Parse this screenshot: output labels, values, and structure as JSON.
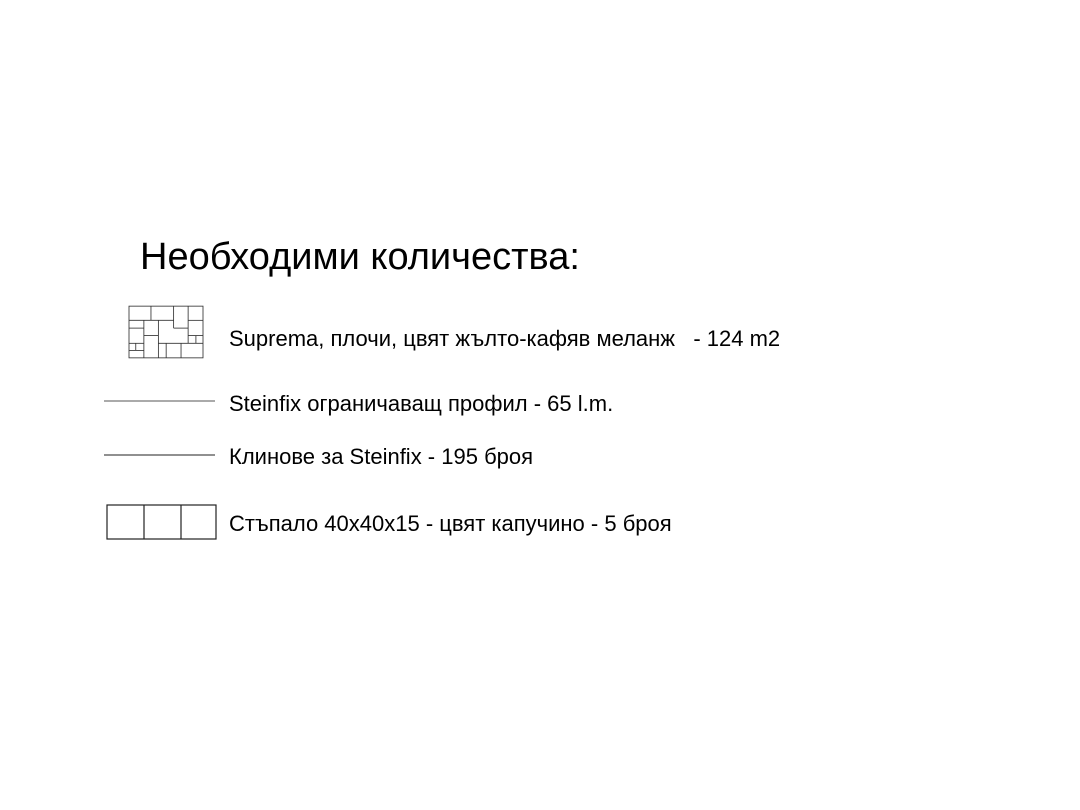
{
  "legend": {
    "title": "Необходими количества:",
    "items": [
      {
        "symbol": "paving-tile-pattern-icon",
        "label": "Suprema, плочи, цвят жълто-кафяв меланж   - 124 m2"
      },
      {
        "symbol": "line-icon",
        "label": "Steinfix ограничаващ профил - 65 l.m."
      },
      {
        "symbol": "line-icon",
        "label": "Клинове за Steinfix - 195 броя"
      },
      {
        "symbol": "step-blocks-icon",
        "label": "Стъпало 40x40x15 - цвят капучино - 5 броя"
      }
    ]
  }
}
